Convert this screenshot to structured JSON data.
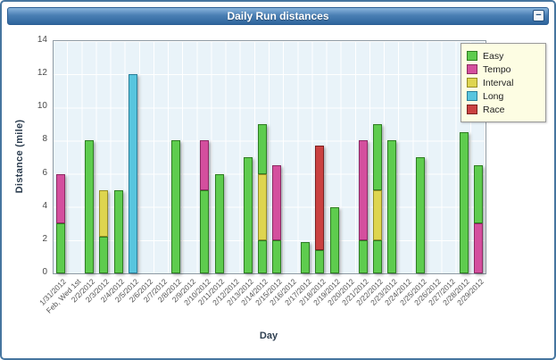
{
  "window": {
    "title": "Daily Run distances",
    "minimize_label": "−"
  },
  "chart_data": {
    "type": "bar",
    "stacked": true,
    "title": "Daily Run distances",
    "xlabel": "Day",
    "ylabel": "Distance (mile)",
    "ylim": [
      0,
      14
    ],
    "yticks": [
      0,
      2,
      4,
      6,
      8,
      10,
      12,
      14
    ],
    "grid": true,
    "legend_position": "top-right",
    "plot_bg": "#e9f3f9",
    "legend_bg": "#fdfde3",
    "series": [
      {
        "name": "Easy",
        "color": "#5ecc4e",
        "border": "#2f7d22"
      },
      {
        "name": "Tempo",
        "color": "#d44f9e",
        "border": "#8c2a62"
      },
      {
        "name": "Interval",
        "color": "#ded54f",
        "border": "#968d26"
      },
      {
        "name": "Long",
        "color": "#58c5de",
        "border": "#2b7f99"
      },
      {
        "name": "Race",
        "color": "#ca4141",
        "border": "#7c2020"
      }
    ],
    "categories": [
      "1/31/2012",
      "Feb, Wed 1st",
      "2/2/2012",
      "2/3/2012",
      "2/4/2012",
      "2/5/2012",
      "2/6/2012",
      "2/7/2012",
      "2/8/2012",
      "2/9/2012",
      "2/10/2012",
      "2/11/2012",
      "2/12/2012",
      "2/13/2012",
      "2/14/2012",
      "2/15/2012",
      "2/16/2012",
      "2/17/2012",
      "2/18/2012",
      "2/19/2012",
      "2/20/2012",
      "2/21/2012",
      "2/22/2012",
      "2/23/2012",
      "2/24/2012",
      "2/25/2012",
      "2/26/2012",
      "2/27/2012",
      "2/28/2012",
      "2/29/2012"
    ],
    "bars": [
      {
        "date": "1/31/2012",
        "total": 6,
        "segments": [
          {
            "series": "Easy",
            "value": 3
          },
          {
            "series": "Tempo",
            "value": 3
          }
        ]
      },
      {
        "date": "2/2/2012",
        "total": 8,
        "segments": [
          {
            "series": "Easy",
            "value": 8
          }
        ]
      },
      {
        "date": "2/3/2012",
        "total": 5,
        "segments": [
          {
            "series": "Easy",
            "value": 2.2
          },
          {
            "series": "Interval",
            "value": 2.8
          }
        ]
      },
      {
        "date": "2/4/2012",
        "total": 5,
        "segments": [
          {
            "series": "Easy",
            "value": 5
          }
        ]
      },
      {
        "date": "2/5/2012",
        "total": 12,
        "segments": [
          {
            "series": "Long",
            "value": 12
          }
        ]
      },
      {
        "date": "2/8/2012",
        "total": 8,
        "segments": [
          {
            "series": "Easy",
            "value": 8
          }
        ]
      },
      {
        "date": "2/10/2012",
        "total": 8,
        "segments": [
          {
            "series": "Easy",
            "value": 5
          },
          {
            "series": "Tempo",
            "value": 3
          }
        ]
      },
      {
        "date": "2/11/2012",
        "total": 6,
        "segments": [
          {
            "series": "Easy",
            "value": 6
          }
        ]
      },
      {
        "date": "2/13/2012",
        "total": 7,
        "segments": [
          {
            "series": "Easy",
            "value": 7
          }
        ]
      },
      {
        "date": "2/14/2012",
        "total": 9,
        "segments": [
          {
            "series": "Easy",
            "value": 2
          },
          {
            "series": "Interval",
            "value": 4
          },
          {
            "series": "Easy",
            "value": 3
          }
        ]
      },
      {
        "date": "2/15/2012",
        "total": 6.5,
        "segments": [
          {
            "series": "Easy",
            "value": 2
          },
          {
            "series": "Tempo",
            "value": 4.5
          }
        ]
      },
      {
        "date": "2/17/2012",
        "total": 1.9,
        "segments": [
          {
            "series": "Easy",
            "value": 1.9
          }
        ]
      },
      {
        "date": "2/18/2012",
        "total": 7.7,
        "segments": [
          {
            "series": "Easy",
            "value": 1.4
          },
          {
            "series": "Race",
            "value": 6.3
          }
        ]
      },
      {
        "date": "2/19/2012",
        "total": 4,
        "segments": [
          {
            "series": "Easy",
            "value": 4
          }
        ]
      },
      {
        "date": "2/21/2012",
        "total": 8,
        "segments": [
          {
            "series": "Easy",
            "value": 2
          },
          {
            "series": "Tempo",
            "value": 6
          }
        ]
      },
      {
        "date": "2/22/2012",
        "total": 9,
        "segments": [
          {
            "series": "Easy",
            "value": 2
          },
          {
            "series": "Interval",
            "value": 3
          },
          {
            "series": "Easy",
            "value": 4
          }
        ]
      },
      {
        "date": "2/23/2012",
        "total": 8,
        "segments": [
          {
            "series": "Easy",
            "value": 8
          }
        ]
      },
      {
        "date": "2/25/2012",
        "total": 7,
        "segments": [
          {
            "series": "Easy",
            "value": 7
          }
        ]
      },
      {
        "date": "2/28/2012",
        "total": 8.5,
        "segments": [
          {
            "series": "Easy",
            "value": 8.5
          }
        ]
      },
      {
        "date": "2/29/2012",
        "total": 6.5,
        "segments": [
          {
            "series": "Tempo",
            "value": 3
          },
          {
            "series": "Easy",
            "value": 3.5
          }
        ]
      }
    ]
  }
}
